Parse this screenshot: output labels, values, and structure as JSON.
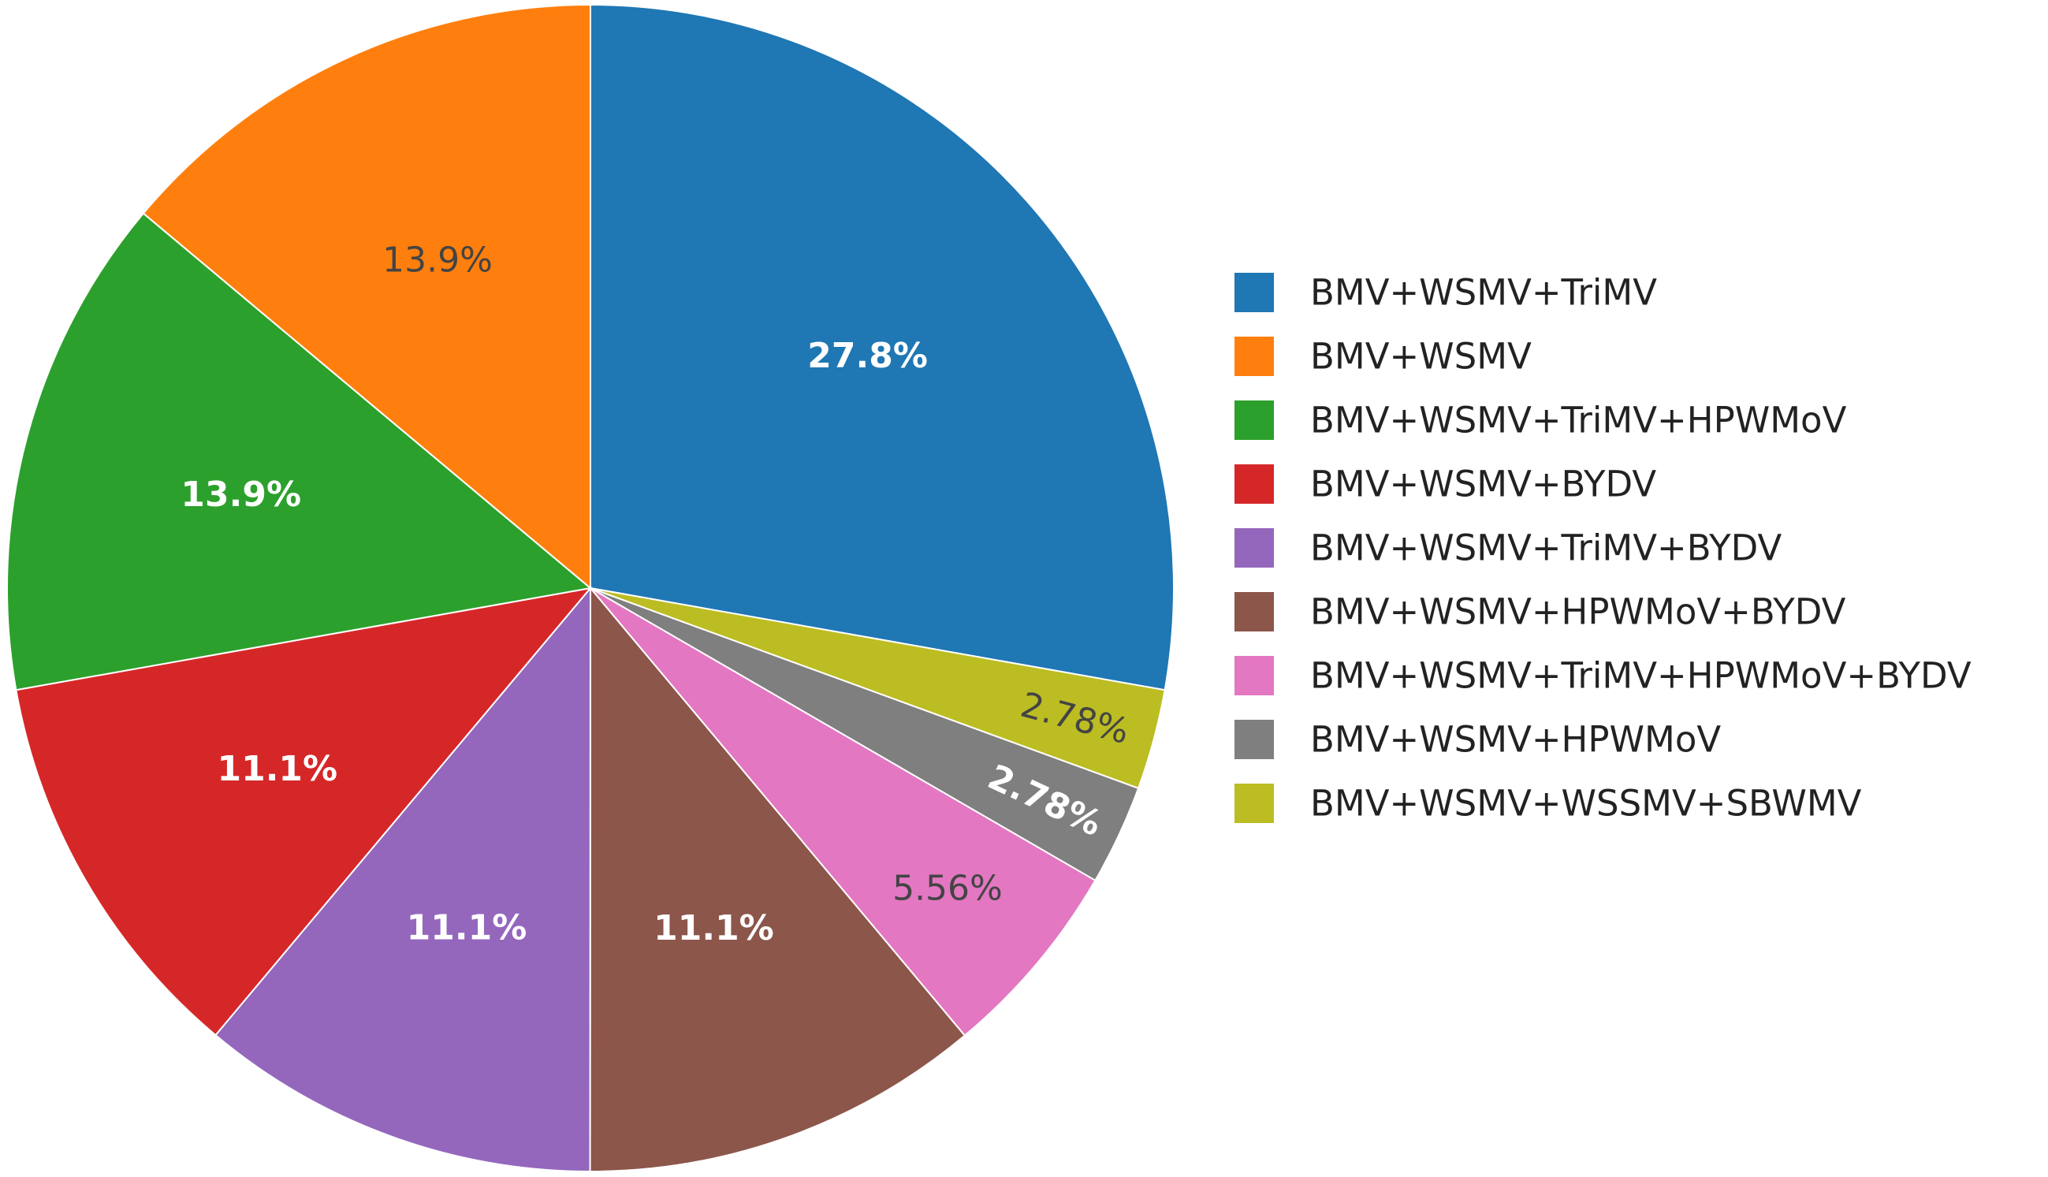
{
  "chart_data": {
    "type": "pie",
    "title": "",
    "legend_position": "right",
    "direction": "clockwise",
    "start_angle": "12 o'clock",
    "slices": [
      {
        "label": "BMV+WSMV+TriMV",
        "value": 27.8,
        "display": "27.8%",
        "color": "#1f77b4",
        "label_color": "#ffffff"
      },
      {
        "label": "BMV+WSMV+WSSMV+SBWMV",
        "value": 2.78,
        "display": "2.78%",
        "color": "#bcbd22",
        "label_color": "#444444"
      },
      {
        "label": "BMV+WSMV+HPWMoV",
        "value": 2.78,
        "display": "2.78%",
        "color": "#7f7f7f",
        "label_color": "#ffffff"
      },
      {
        "label": "BMV+WSMV+TriMV+HPWMoV+BYDV",
        "value": 5.56,
        "display": "5.56%",
        "color": "#e377c2",
        "label_color": "#444444"
      },
      {
        "label": "BMV+WSMV+HPWMoV+BYDV",
        "value": 11.1,
        "display": "11.1%",
        "color": "#8c564b",
        "label_color": "#ffffff"
      },
      {
        "label": "BMV+WSMV+TriMV+BYDV",
        "value": 11.1,
        "display": "11.1%",
        "color": "#9467bd",
        "label_color": "#ffffff"
      },
      {
        "label": "BMV+WSMV+BYDV",
        "value": 11.1,
        "display": "11.1%",
        "color": "#d62728",
        "label_color": "#ffffff"
      },
      {
        "label": "BMV+WSMV+TriMV+HPWMoV",
        "value": 13.9,
        "display": "13.9%",
        "color": "#2ca02c",
        "label_color": "#ffffff"
      },
      {
        "label": "BMV+WSMV",
        "value": 13.9,
        "display": "13.9%",
        "color": "#ff7f0e",
        "label_color": "#444444"
      }
    ],
    "legend": [
      "BMV+WSMV+TriMV",
      "BMV+WSMV",
      "BMV+WSMV+TriMV+HPWMoV",
      "BMV+WSMV+BYDV",
      "BMV+WSMV+TriMV+BYDV",
      "BMV+WSMV+HPWMoV+BYDV",
      "BMV+WSMV+TriMV+HPWMoV+BYDV",
      "BMV+WSMV+HPWMoV",
      "BMV+WSMV+WSSMV+SBWMV"
    ]
  }
}
